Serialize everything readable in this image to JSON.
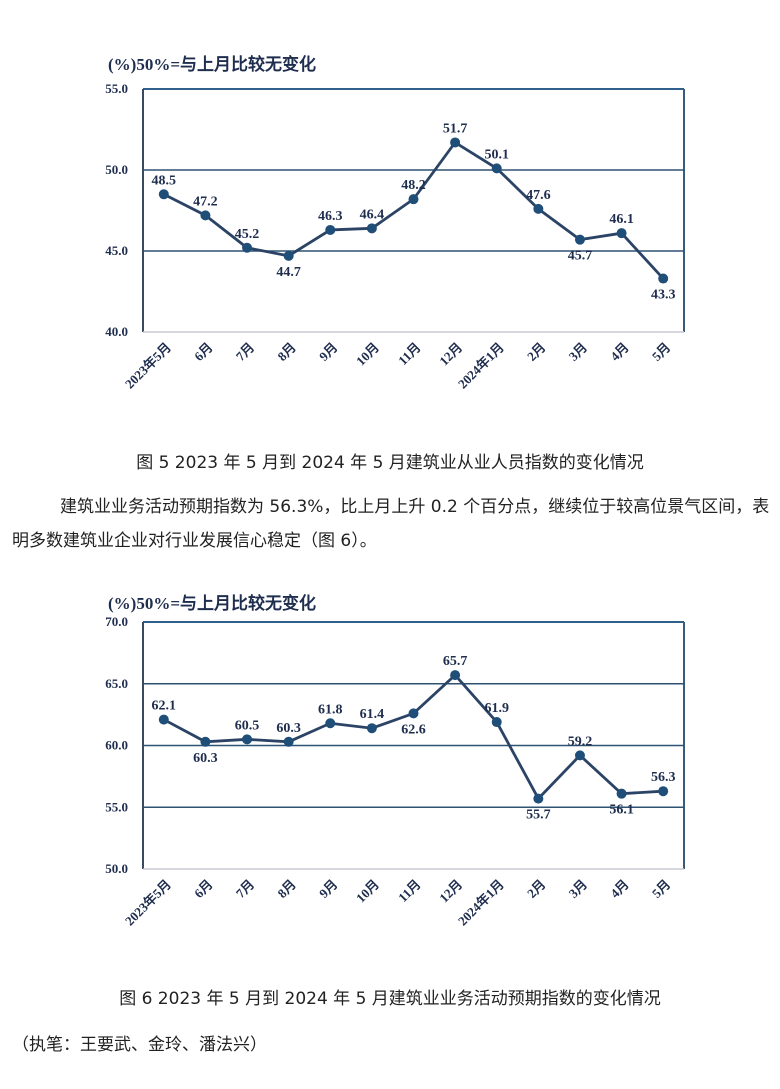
{
  "chart_data": [
    {
      "type": "line",
      "title": "图5 2023年5月到2024年5月建筑业从业人员指数的变化情况",
      "unit_label": "(%)50%=与上月比较无变化",
      "categories": [
        "2023年5月",
        "6月",
        "7月",
        "8月",
        "9月",
        "10月",
        "11月",
        "12月",
        "2024年1月",
        "2月",
        "3月",
        "4月",
        "5月"
      ],
      "values": [
        48.5,
        47.2,
        45.2,
        44.7,
        46.3,
        46.4,
        48.2,
        51.7,
        50.1,
        47.6,
        45.7,
        46.1,
        43.3
      ],
      "label_pos": [
        "above",
        "above",
        "above",
        "below",
        "above",
        "above",
        "above",
        "above",
        "above",
        "above",
        "below",
        "above",
        "below"
      ],
      "yticks": [
        "55.0",
        "50.0",
        "45.0",
        "40.0"
      ],
      "ylim": [
        40,
        55
      ],
      "gridlines": [
        45,
        50
      ],
      "xlabel": "",
      "ylabel": "",
      "line_color": "#2b4466",
      "marker_color": "#1f4e79"
    },
    {
      "type": "line",
      "title": "图6 2023年5月到2024年5月建筑业业务活动预期指数的变化情况",
      "unit_label": "(%)50%=与上月比较无变化",
      "categories": [
        "2023年5月",
        "6月",
        "7月",
        "8月",
        "9月",
        "10月",
        "11月",
        "12月",
        "2024年1月",
        "2月",
        "3月",
        "4月",
        "5月"
      ],
      "values": [
        62.1,
        60.3,
        60.5,
        60.3,
        61.8,
        61.4,
        62.6,
        65.7,
        61.9,
        55.7,
        59.2,
        56.1,
        56.3
      ],
      "label_pos": [
        "above",
        "below",
        "above",
        "above",
        "above",
        "above",
        "below",
        "above",
        "above",
        "below",
        "above",
        "below",
        "above"
      ],
      "yticks": [
        "70.0",
        "65.0",
        "60.0",
        "55.0",
        "50.0"
      ],
      "ylim": [
        50,
        70
      ],
      "gridlines": [
        55,
        60,
        65
      ],
      "xlabel": "",
      "ylabel": "",
      "line_color": "#2b4466",
      "marker_color": "#1f4e79"
    }
  ],
  "captions": {
    "fig5": "图 5  2023 年 5 月到 2024 年 5 月建筑业从业人员指数的变化情况",
    "fig6": "图 6  2023 年 5 月到 2024 年 5 月建筑业业务活动预期指数的变化情况"
  },
  "paragraph": "建筑业业务活动预期指数为 56.3%，比上月上升 0.2 个百分点，继续位于较高位景气区间，表明多数建筑业企业对行业发展信心稳定（图 6）。",
  "author": "（执笔：王要武、金玲、潘法兴）"
}
